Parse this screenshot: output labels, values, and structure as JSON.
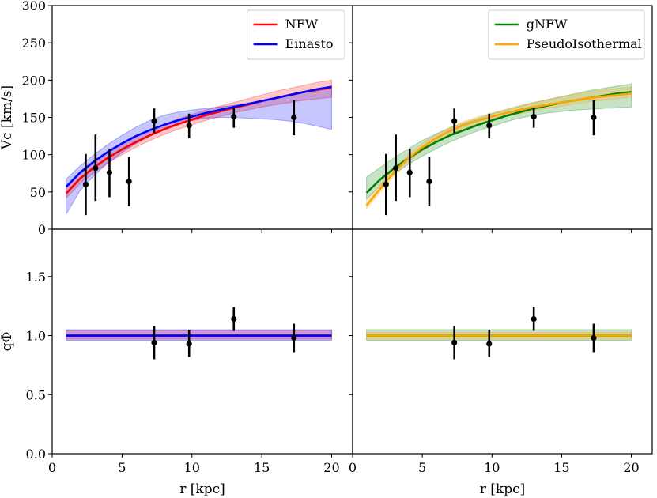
{
  "chart_data": {
    "type": "line",
    "layout": "2x2 grid, shared x-axis per column, shared y-axis per row",
    "xlabel": "r [kpc]",
    "xlim": [
      0,
      21.5
    ],
    "xticks": [
      0,
      5,
      10,
      15,
      20
    ],
    "rows": [
      {
        "id": "vc",
        "ylabel": "Vc [km/s]",
        "ylim": [
          0,
          300
        ],
        "yticks": [
          0,
          50,
          100,
          150,
          200,
          250,
          300
        ],
        "tick_decimals": 0
      },
      {
        "id": "qphi",
        "ylabel": "qΦ",
        "ylim": [
          0,
          1.9
        ],
        "yticks": [
          0.0,
          0.5,
          1.0,
          1.5
        ],
        "tick_decimals": 1
      }
    ],
    "colors": {
      "NFW": "#ff0000",
      "Einasto": "#0000ff",
      "gNFW": "#008000",
      "PseudoIsothermal": "#ffa500",
      "data": "#000000"
    },
    "series_x": [
      1,
      2,
      3,
      4,
      5,
      6,
      7,
      8,
      9,
      10,
      11,
      12,
      13,
      14,
      15,
      16,
      17,
      18,
      19,
      20
    ],
    "panels": [
      {
        "id": "left-top",
        "row": "vc",
        "col": 0,
        "legend_position": "top-right",
        "series": [
          {
            "name": "NFW",
            "y": [
              48,
              68,
              83,
              96,
              107,
              117,
              126,
              134,
              141,
              147,
              153,
              158,
              163,
              167,
              172,
              176,
              180,
              184,
              187,
              190
            ],
            "band_low": [
              42,
              61,
              76,
              89,
              100,
              110,
              119,
              127,
              134,
              140,
              146,
              151,
              156,
              160,
              164,
              167,
              170,
              173,
              175,
              177
            ],
            "band_high": [
              55,
              75,
              90,
              103,
              114,
              124,
              133,
              141,
              148,
              154,
              160,
              165,
              170,
              175,
              180,
              185,
              189,
              193,
              197,
              200
            ]
          },
          {
            "name": "Einasto",
            "y": [
              57,
              76,
              91,
              104,
              115,
              125,
              133,
              140,
              146,
              151,
              156,
              160,
              164,
              168,
              172,
              176,
              180,
              184,
              188,
              191
            ],
            "band_low": [
              20,
              52,
              72,
              89,
              103,
              115,
              125,
              134,
              141,
              146,
              149,
              150,
              150,
              149,
              148,
              147,
              145,
              142,
              138,
              134
            ],
            "band_high": [
              67,
              85,
              100,
              114,
              126,
              137,
              146,
              153,
              157,
              160,
              162,
              164,
              166,
              169,
              172,
              176,
              180,
              184,
              188,
              192
            ]
          }
        ]
      },
      {
        "id": "right-top",
        "row": "vc",
        "col": 1,
        "legend_position": "top-right",
        "series": [
          {
            "name": "gNFW",
            "y": [
              49,
              67,
              82,
              95,
              107,
              117,
              126,
              133,
              140,
              146,
              152,
              157,
              162,
              166,
              170,
              173,
              176,
              179,
              182,
              184
            ],
            "band_low": [
              40,
              59,
              74,
              87,
              98,
              108,
              117,
              125,
              132,
              138,
              144,
              149,
              153,
              156,
              158,
              160,
              161,
              162,
              163,
              164
            ],
            "band_high": [
              70,
              83,
              96,
              108,
              119,
              128,
              136,
              143,
              149,
              155,
              160,
              165,
              170,
              174,
              178,
              182,
              186,
              189,
              192,
              195
            ]
          },
          {
            "name": "PseudoIsothermal",
            "y": [
              32,
              55,
              77,
              95,
              110,
              122,
              132,
              140,
              146,
              151,
              156,
              160,
              164,
              167,
              170,
              173,
              176,
              178,
              180,
              182
            ],
            "band_low": [
              28,
              50,
              72,
              90,
              105,
              117,
              127,
              135,
              141,
              146,
              151,
              155,
              159,
              162,
              165,
              168,
              171,
              173,
              175,
              177
            ],
            "band_high": [
              37,
              60,
              82,
              100,
              115,
              127,
              137,
              145,
              151,
              156,
              161,
              166,
              170,
              174,
              178,
              181,
              184,
              187,
              189,
              191
            ]
          }
        ]
      },
      {
        "id": "left-bottom",
        "row": "qphi",
        "col": 0,
        "legend_position": "none",
        "series": [
          {
            "name": "NFW",
            "y": [
              1.0,
              1.0,
              1.0,
              1.0,
              1.0,
              1.0,
              1.0,
              1.0,
              1.0,
              1.0,
              1.0,
              1.0,
              1.0,
              1.0,
              1.0,
              1.0,
              1.0,
              1.0,
              1.0,
              1.0
            ],
            "band_low": [
              0.97,
              0.97,
              0.97,
              0.97,
              0.97,
              0.97,
              0.97,
              0.97,
              0.97,
              0.97,
              0.97,
              0.97,
              0.97,
              0.97,
              0.97,
              0.97,
              0.97,
              0.97,
              0.97,
              0.97
            ],
            "band_high": [
              1.04,
              1.04,
              1.04,
              1.04,
              1.04,
              1.04,
              1.04,
              1.04,
              1.04,
              1.04,
              1.04,
              1.04,
              1.04,
              1.04,
              1.04,
              1.04,
              1.04,
              1.04,
              1.04,
              1.04
            ]
          },
          {
            "name": "Einasto",
            "y": [
              1.0,
              1.0,
              1.0,
              1.0,
              1.0,
              1.0,
              1.0,
              1.0,
              1.0,
              1.0,
              1.0,
              1.0,
              1.0,
              1.0,
              1.0,
              1.0,
              1.0,
              1.0,
              1.0,
              1.0
            ],
            "band_low": [
              0.96,
              0.96,
              0.96,
              0.96,
              0.96,
              0.96,
              0.96,
              0.96,
              0.96,
              0.96,
              0.96,
              0.96,
              0.96,
              0.96,
              0.96,
              0.96,
              0.96,
              0.96,
              0.96,
              0.96
            ],
            "band_high": [
              1.05,
              1.05,
              1.05,
              1.05,
              1.05,
              1.05,
              1.05,
              1.05,
              1.05,
              1.05,
              1.05,
              1.05,
              1.05,
              1.05,
              1.05,
              1.05,
              1.05,
              1.05,
              1.05,
              1.05
            ]
          }
        ]
      },
      {
        "id": "right-bottom",
        "row": "qphi",
        "col": 1,
        "legend_position": "none",
        "series": [
          {
            "name": "gNFW",
            "y": [
              1.0,
              1.0,
              1.0,
              1.0,
              1.0,
              1.0,
              1.0,
              1.0,
              1.0,
              1.0,
              1.0,
              1.0,
              1.0,
              1.0,
              1.0,
              1.0,
              1.0,
              1.0,
              1.0,
              1.0
            ],
            "band_low": [
              0.96,
              0.96,
              0.96,
              0.96,
              0.96,
              0.96,
              0.96,
              0.96,
              0.96,
              0.96,
              0.96,
              0.96,
              0.96,
              0.96,
              0.96,
              0.96,
              0.96,
              0.96,
              0.96,
              0.96
            ],
            "band_high": [
              1.05,
              1.05,
              1.05,
              1.05,
              1.05,
              1.05,
              1.05,
              1.05,
              1.05,
              1.05,
              1.05,
              1.05,
              1.05,
              1.05,
              1.05,
              1.05,
              1.05,
              1.05,
              1.05,
              1.05
            ]
          },
          {
            "name": "PseudoIsothermal",
            "y": [
              1.0,
              1.0,
              1.0,
              1.0,
              1.0,
              1.0,
              1.0,
              1.0,
              1.0,
              1.0,
              1.0,
              1.0,
              1.0,
              1.0,
              1.0,
              1.0,
              1.0,
              1.0,
              1.0,
              1.0
            ],
            "band_low": [
              0.97,
              0.97,
              0.97,
              0.97,
              0.97,
              0.97,
              0.97,
              0.97,
              0.97,
              0.97,
              0.97,
              0.97,
              0.97,
              0.97,
              0.97,
              0.97,
              0.97,
              0.97,
              0.97,
              0.97
            ],
            "band_high": [
              1.03,
              1.03,
              1.03,
              1.03,
              1.03,
              1.03,
              1.03,
              1.03,
              1.03,
              1.03,
              1.03,
              1.03,
              1.03,
              1.03,
              1.03,
              1.03,
              1.03,
              1.03,
              1.03,
              1.03
            ]
          }
        ]
      }
    ],
    "observations": {
      "vc": [
        {
          "r": 2.4,
          "v": 60,
          "err_low": 41,
          "err_high": 41
        },
        {
          "r": 3.1,
          "v": 82,
          "err_low": 44,
          "err_high": 45
        },
        {
          "r": 4.1,
          "v": 76,
          "err_low": 33,
          "err_high": 32
        },
        {
          "r": 5.5,
          "v": 64,
          "err_low": 33,
          "err_high": 33
        },
        {
          "r": 7.3,
          "v": 145,
          "err_low": 16,
          "err_high": 17
        },
        {
          "r": 9.8,
          "v": 139,
          "err_low": 17,
          "err_high": 16
        },
        {
          "r": 13.0,
          "v": 151,
          "err_low": 15,
          "err_high": 12
        },
        {
          "r": 17.3,
          "v": 150,
          "err_low": 24,
          "err_high": 23
        }
      ],
      "qphi": [
        {
          "r": 7.3,
          "v": 0.94,
          "err_low": 0.14,
          "err_high": 0.14
        },
        {
          "r": 9.8,
          "v": 0.93,
          "err_low": 0.11,
          "err_high": 0.12
        },
        {
          "r": 13.0,
          "v": 1.14,
          "err_low": 0.1,
          "err_high": 0.1
        },
        {
          "r": 17.3,
          "v": 0.98,
          "err_low": 0.12,
          "err_high": 0.12
        }
      ]
    }
  }
}
